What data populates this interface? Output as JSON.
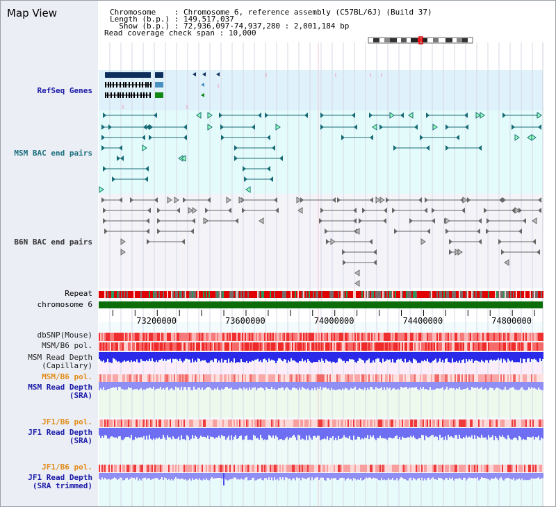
{
  "title": "Map View",
  "info": {
    "chromosome_label": "Chromosome",
    "chromosome_value": "Chromosome 6, reference assembly (C57BL/6J) (Build 37)",
    "length_label": "Length (b.p.)",
    "length_value": "149,517,037",
    "show_label": "Show (b.p.)",
    "show_value": "72,936,097-74,937,280 : 2,001,184 bp",
    "coverage_label": "Read coverage check span",
    "coverage_value": "10,000"
  },
  "labels": {
    "refseq": "RefSeq Genes",
    "msm_bac": "MSM BAC end pairs",
    "b6n_bac": "B6N BAC end pairs",
    "repeat": "Repeat",
    "chromosome": "chromosome 6",
    "dbsnp": "dbSNP(Mouse)",
    "msm_b6_pol_1": "MSM/B6 pol.",
    "msm_depth_cap_1": "MSM Read Depth",
    "msm_depth_cap_2": "(Capillary)",
    "msm_b6_pol_2": "MSM/B6 pol.",
    "msm_depth_sra_1": "MSM Read Depth",
    "msm_depth_sra_2": "(SRA)",
    "jf1_pol_1": "JF1/B6 pol.",
    "jf1_depth_1": "JF1 Read Depth",
    "jf1_depth_2": "(SRA)",
    "jf1_pol_2": "JF1/B6 pol.",
    "jf1_trim_1": "JF1 Read Depth",
    "jf1_trim_2": "(SRA trimmed)"
  },
  "axis": {
    "ticks": [
      {
        "label": "73200000",
        "pos": 73200000
      },
      {
        "label": "73600000",
        "pos": 73600000
      },
      {
        "label": "74000000",
        "pos": 74000000
      },
      {
        "label": "74400000",
        "pos": 74400000
      },
      {
        "label": "74800000",
        "pos": 74800000
      }
    ],
    "range": [
      72936097,
      74937280
    ]
  },
  "colors": {
    "refseq_bg": "#dff1fa",
    "msm_bg": "#e4fbfb",
    "b6n_bg": "#f4f4f8",
    "chromosome": "#0b6e0b",
    "repeat_red": "#e00000",
    "depth_blue": "#2a2ae8",
    "depth_light": "#8e8ef5",
    "pol_red": "#f05050",
    "teal": "#176b76",
    "gray": "#666666"
  }
}
